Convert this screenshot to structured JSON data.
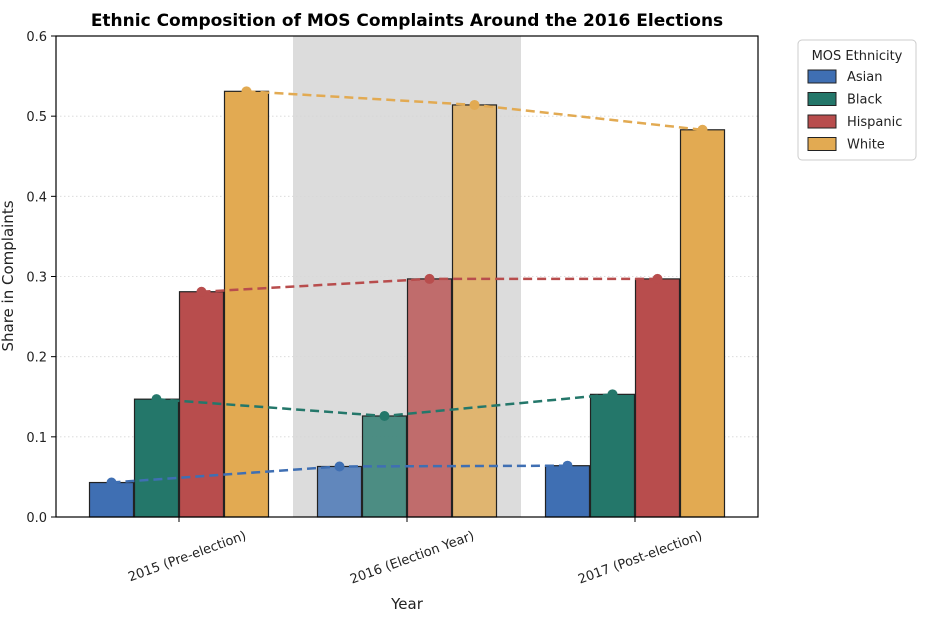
{
  "chart_data": {
    "type": "bar",
    "title": "Ethnic Composition of MOS Complaints Around the 2016 Elections",
    "xlabel": "Year",
    "ylabel": "Share in Complaints",
    "categories": [
      "2015 (Pre-election)",
      "2016 (Election Year)",
      "2017 (Post-election)"
    ],
    "ylim": [
      0,
      0.6
    ],
    "yticks": [
      "0.0",
      "0.1",
      "0.2",
      "0.3",
      "0.4",
      "0.5",
      "0.6"
    ],
    "highlighted_category": "2016 (Election Year)",
    "grid": "horizontal dotted",
    "legend": {
      "title": "MOS Ethnicity",
      "placement": "upper right, outside plot"
    },
    "series": [
      {
        "name": "Asian",
        "color": "#3f6fb3",
        "values": [
          0.043,
          0.063,
          0.064
        ]
      },
      {
        "name": "Black",
        "color": "#24776a",
        "values": [
          0.147,
          0.126,
          0.153
        ]
      },
      {
        "name": "Hispanic",
        "color": "#b84d4d",
        "values": [
          0.281,
          0.297,
          0.297
        ]
      },
      {
        "name": "White",
        "color": "#e2aa52",
        "values": [
          0.531,
          0.514,
          0.483
        ]
      }
    ]
  }
}
